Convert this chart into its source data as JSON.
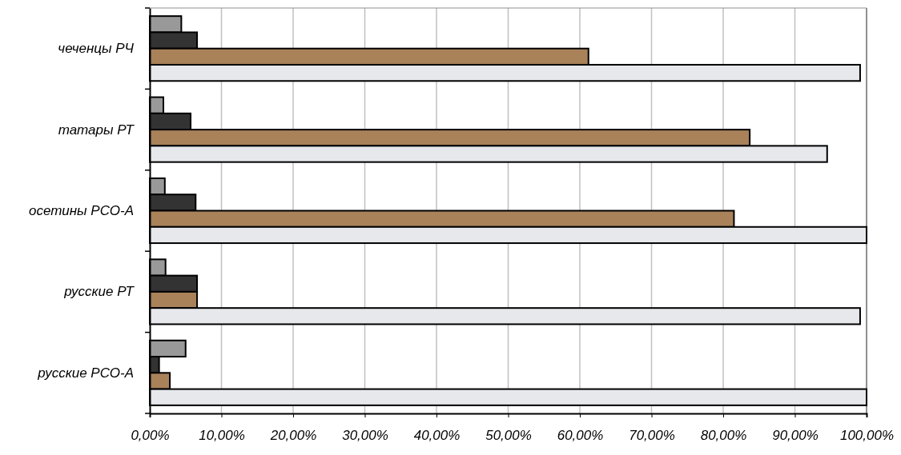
{
  "chart_data": {
    "type": "bar",
    "orientation": "horizontal",
    "categories": [
      "чеченцы РЧ",
      "татары РТ",
      "осетины РСО-А",
      "русские РТ",
      "русские РСО-А"
    ],
    "series": [
      {
        "color": "#999999",
        "values": [
          4.4,
          1.9,
          2.1,
          2.2,
          5.0
        ]
      },
      {
        "color": "#333333",
        "values": [
          6.6,
          5.7,
          6.4,
          6.6,
          1.3
        ]
      },
      {
        "color": "#a9825a",
        "values": [
          61.2,
          83.7,
          81.5,
          6.6,
          2.8
        ]
      },
      {
        "color": "#e6e8ec",
        "values": [
          99.1,
          94.5,
          100,
          99.1,
          100
        ]
      }
    ],
    "xlim": [
      0,
      100
    ],
    "xticks": [
      {
        "value": 0,
        "label": "0,00%"
      },
      {
        "value": 10,
        "label": "10,00%"
      },
      {
        "value": 20,
        "label": "20,00%"
      },
      {
        "value": 30,
        "label": "30,00%"
      },
      {
        "value": 40,
        "label": "40,00%"
      },
      {
        "value": 50,
        "label": "50,00%"
      },
      {
        "value": 60,
        "label": "60,00%"
      },
      {
        "value": 70,
        "label": "70,00%"
      },
      {
        "value": 80,
        "label": "80,00%"
      },
      {
        "value": 90,
        "label": "90,00%"
      },
      {
        "value": 100,
        "label": "100,00%"
      }
    ],
    "grid": "x"
  }
}
